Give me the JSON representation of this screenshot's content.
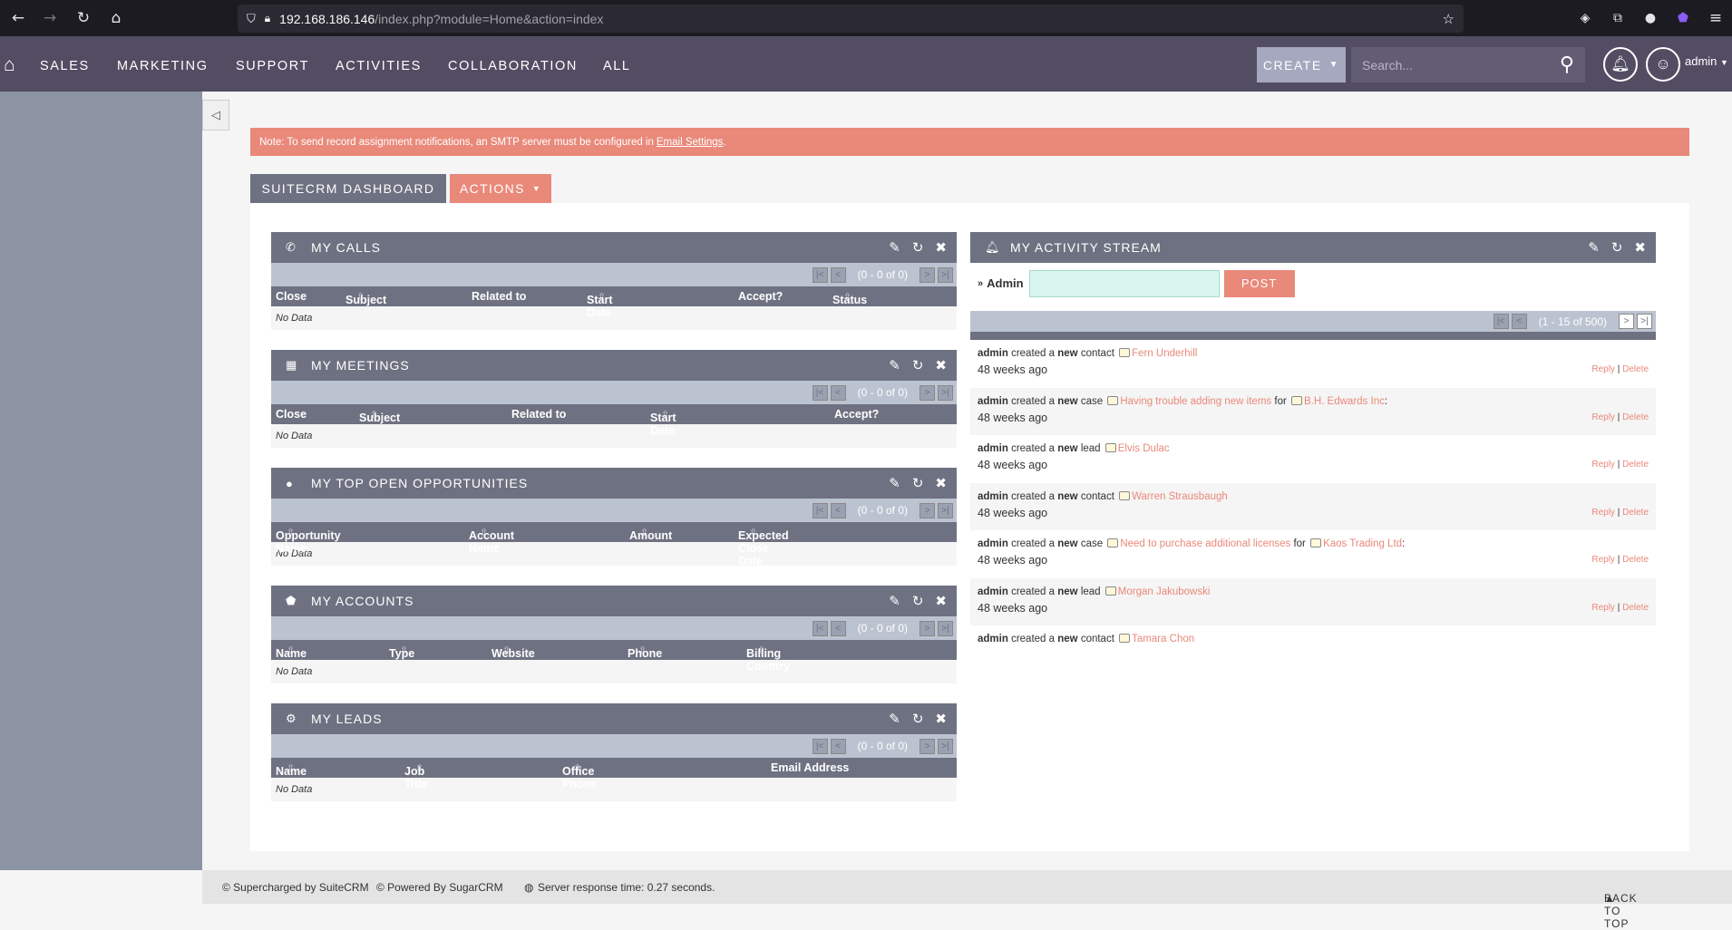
{
  "browser": {
    "url_host": "192.168.186.146",
    "url_path": "/index.php?module=Home&action=index"
  },
  "nav": {
    "items": [
      "SALES",
      "MARKETING",
      "SUPPORT",
      "ACTIVITIES",
      "COLLABORATION",
      "ALL"
    ],
    "create_label": "CREATE",
    "search_placeholder": "Search...",
    "user": "admin"
  },
  "notice": {
    "text": "Note: To send record assignment notifications, an SMTP server must be configured in",
    "link": "Email Settings",
    "tail": "."
  },
  "tabs": {
    "dashboard": "SUITECRM DASHBOARD",
    "actions": "ACTIONS"
  },
  "dashlets": {
    "calls": {
      "title": "MY CALLS",
      "pager": "(0 - 0 of 0)",
      "cols": [
        "Close",
        "Subject",
        "Related to",
        "Start Date",
        "Accept?",
        "Status"
      ],
      "empty": "No Data"
    },
    "meetings": {
      "title": "MY MEETINGS",
      "pager": "(0 - 0 of 0)",
      "cols": [
        "Close",
        "Subject",
        "Related to",
        "Start Date",
        "Accept?"
      ],
      "empty": "No Data"
    },
    "opps": {
      "title": "MY TOP OPEN OPPORTUNITIES",
      "pager": "(0 - 0 of 0)",
      "cols": [
        "Opportunity Name",
        "Account Name",
        "Amount",
        "Expected Close Date"
      ],
      "empty": "No Data"
    },
    "accounts": {
      "title": "MY ACCOUNTS",
      "pager": "(0 - 0 of 0)",
      "cols": [
        "Name",
        "Type",
        "Website",
        "Phone",
        "Billing Country"
      ],
      "empty": "No Data"
    },
    "leads": {
      "title": "MY LEADS",
      "pager": "(0 - 0 of 0)",
      "cols": [
        "Name",
        "Job Title",
        "Office Phone",
        "Email Address"
      ],
      "empty": "No Data"
    }
  },
  "activity": {
    "title": "MY ACTIVITY STREAM",
    "user_label": "Admin",
    "post_label": "POST",
    "pager": "(1 - 15 of 500)",
    "reply": "Reply",
    "delete": "Delete",
    "items": [
      {
        "actor": "admin",
        "verb": "created a",
        "new": "new",
        "type": "contact",
        "name": "Fern Underhill",
        "extra": "",
        "extra_name": "",
        "time": "48 weeks ago"
      },
      {
        "actor": "admin",
        "verb": "created a",
        "new": "new",
        "type": "case",
        "name": "Having trouble adding new items",
        "extra": "for",
        "extra_name": "B.H. Edwards Inc",
        "time": "48 weeks ago"
      },
      {
        "actor": "admin",
        "verb": "created a",
        "new": "new",
        "type": "lead",
        "name": "Elvis Dulac",
        "extra": "",
        "extra_name": "",
        "time": "48 weeks ago"
      },
      {
        "actor": "admin",
        "verb": "created a",
        "new": "new",
        "type": "contact",
        "name": "Warren Strausbaugh",
        "extra": "",
        "extra_name": "",
        "time": "48 weeks ago"
      },
      {
        "actor": "admin",
        "verb": "created a",
        "new": "new",
        "type": "case",
        "name": "Need to purchase additional licenses",
        "extra": "for",
        "extra_name": "Kaos Trading Ltd",
        "time": "48 weeks ago"
      },
      {
        "actor": "admin",
        "verb": "created a",
        "new": "new",
        "type": "lead",
        "name": "Morgan Jakubowski",
        "extra": "",
        "extra_name": "",
        "time": "48 weeks ago"
      },
      {
        "actor": "admin",
        "verb": "created a",
        "new": "new",
        "type": "contact",
        "name": "Tamara Chon",
        "extra": "",
        "extra_name": "",
        "time": ""
      }
    ]
  },
  "footer": {
    "supercharged": "© Supercharged by SuiteCRM",
    "powered": "© Powered By SugarCRM",
    "server_time": "Server response time: 0.27 seconds.",
    "back_to_top": "BACK TO TOP"
  }
}
